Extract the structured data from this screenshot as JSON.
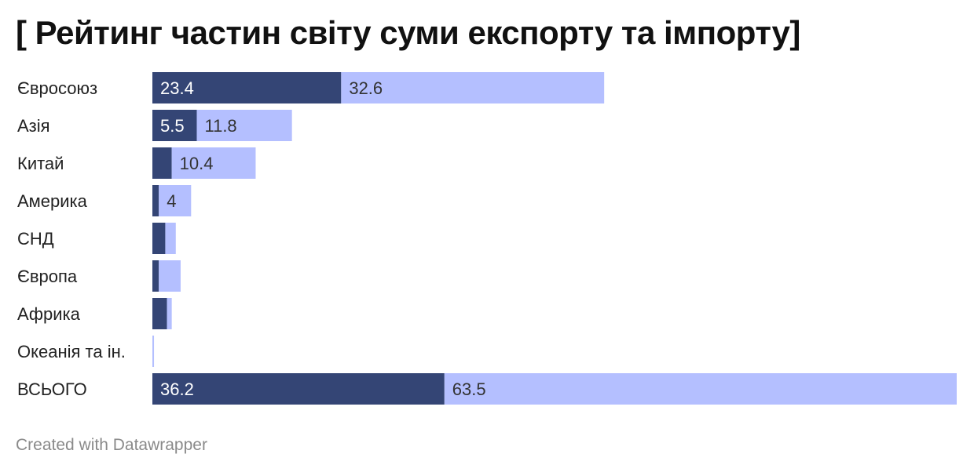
{
  "title": "[ Рейтинг частин світу суми експорту та імпорту]",
  "footer": "Created with Datawrapper",
  "colors": {
    "segment1": "#344575",
    "segment2": "#b4bfff",
    "label_on_dark": "#ffffff",
    "label_on_light": "#333333",
    "category_text": "#222222"
  },
  "chart_data": {
    "type": "bar",
    "orientation": "horizontal",
    "stacked": true,
    "categories": [
      "Євросоюз",
      "Азія",
      "Китай",
      "Америка",
      "СНД",
      "Європа",
      "Африка",
      "Океанія та ін.",
      "ВСЬОГО"
    ],
    "series": [
      {
        "values": [
          23.4,
          5.5,
          2.4,
          0.8,
          1.6,
          0.8,
          1.8,
          0.0,
          36.2
        ],
        "labels": [
          "23.4",
          "5.5",
          "",
          "",
          "",
          "",
          "",
          "",
          "36.2"
        ]
      },
      {
        "values": [
          32.6,
          11.8,
          10.4,
          4,
          1.3,
          2.7,
          0.6,
          0.2,
          63.5
        ],
        "labels": [
          "32.6",
          "11.8",
          "10.4",
          "4",
          "",
          "",
          "",
          "",
          "63.5"
        ]
      }
    ],
    "xlim": [
      0,
      99.7
    ],
    "grid": false,
    "legend": "none"
  }
}
